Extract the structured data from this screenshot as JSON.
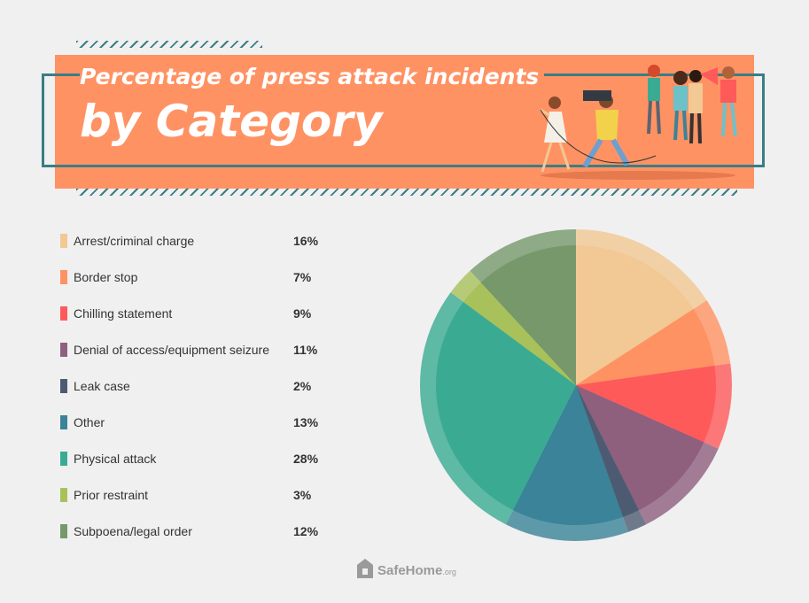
{
  "header": {
    "title_line1": "Percentage of press attack incidents",
    "title_line2": "by Category"
  },
  "chart_data": {
    "type": "pie",
    "categories": [
      "Arrest/criminal charge",
      "Border stop",
      "Chilling statement",
      "Denial of access/equipment seizure",
      "Leak case",
      "Other",
      "Physical attack",
      "Prior restraint",
      "Subpoena/legal order"
    ],
    "values": [
      16,
      7,
      9,
      11,
      2,
      13,
      28,
      3,
      12
    ],
    "value_labels": [
      "16%",
      "7%",
      "9%",
      "11%",
      "2%",
      "13%",
      "28%",
      "3%",
      "12%"
    ],
    "colors": [
      "#f2c894",
      "#ff9263",
      "#ff5a5a",
      "#8f5f7e",
      "#4d5b72",
      "#3a8399",
      "#3aab92",
      "#a9c15a",
      "#76986b"
    ],
    "legend_position": "left"
  },
  "footer": {
    "brand": "SafeHome",
    "brand_suffix": ".org"
  }
}
